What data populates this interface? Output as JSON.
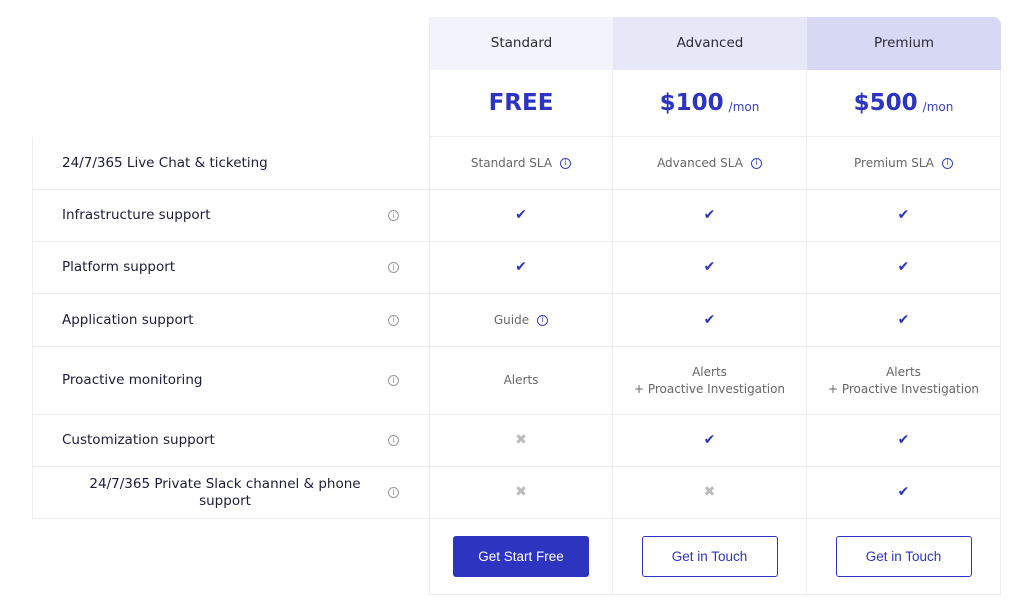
{
  "plans": [
    {
      "name": "Standard",
      "price": "FREE",
      "per": "",
      "button": "Get Start Free"
    },
    {
      "name": "Advanced",
      "price": "$100",
      "per": "/mon",
      "button": "Get in Touch"
    },
    {
      "name": "Premium",
      "price": "$500",
      "per": "/mon",
      "button": "Get in Touch"
    }
  ],
  "features": [
    {
      "label": "24/7/365 Live Chat & ticketing",
      "info": false,
      "cells": [
        {
          "type": "text",
          "lines": [
            "Standard SLA"
          ],
          "info": true
        },
        {
          "type": "text",
          "lines": [
            "Advanced SLA"
          ],
          "info": true
        },
        {
          "type": "text",
          "lines": [
            "Premium SLA"
          ],
          "info": true
        }
      ]
    },
    {
      "label": "Infrastructure support",
      "info": true,
      "cells": [
        {
          "type": "check"
        },
        {
          "type": "check"
        },
        {
          "type": "check"
        }
      ]
    },
    {
      "label": "Platform support",
      "info": true,
      "cells": [
        {
          "type": "check"
        },
        {
          "type": "check"
        },
        {
          "type": "check"
        }
      ]
    },
    {
      "label": "Application support",
      "info": true,
      "cells": [
        {
          "type": "text",
          "lines": [
            "Guide"
          ],
          "info": true
        },
        {
          "type": "check"
        },
        {
          "type": "check"
        }
      ]
    },
    {
      "label": "Proactive monitoring",
      "info": true,
      "cells": [
        {
          "type": "text",
          "lines": [
            "Alerts"
          ]
        },
        {
          "type": "text",
          "lines": [
            "Alerts",
            "+ Proactive Investigation"
          ]
        },
        {
          "type": "text",
          "lines": [
            "Alerts",
            "+ Proactive Investigation"
          ]
        }
      ]
    },
    {
      "label": "Customization support",
      "info": true,
      "cells": [
        {
          "type": "cross"
        },
        {
          "type": "check"
        },
        {
          "type": "check"
        }
      ]
    },
    {
      "label": "24/7/365 Private Slack channel & phone support",
      "info": true,
      "cells": [
        {
          "type": "cross"
        },
        {
          "type": "cross"
        },
        {
          "type": "check"
        }
      ]
    }
  ],
  "colors": {
    "accent": "#2d34bf",
    "header1": "#f3f4fb",
    "header2": "#e6e8f8",
    "header3": "#d7d8f3"
  }
}
